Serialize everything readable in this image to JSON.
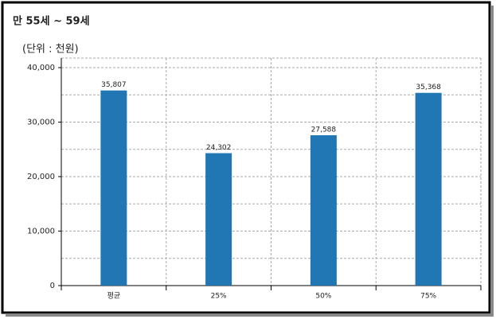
{
  "chart_data": {
    "type": "bar",
    "title": "만 55세 ~ 59세",
    "subtitle": "(단위 : 천원)",
    "categories": [
      "평균",
      "25%",
      "50%",
      "75%"
    ],
    "values": [
      35807,
      24302,
      27588,
      35368
    ],
    "value_labels": [
      "35,807",
      "24,302",
      "27,588",
      "35,368"
    ],
    "color": "#2077b4",
    "ylim": [
      0,
      40000
    ],
    "yticks": [
      0,
      {
        "value": 10000,
        "label": "10,000"
      },
      {
        "value": 20000,
        "label": "20,000"
      },
      {
        "value": 30000,
        "label": "30,000"
      },
      {
        "value": 40000,
        "label": "40,000"
      }
    ],
    "yminor": [
      5000,
      15000,
      25000,
      35000
    ],
    "grid": true
  }
}
